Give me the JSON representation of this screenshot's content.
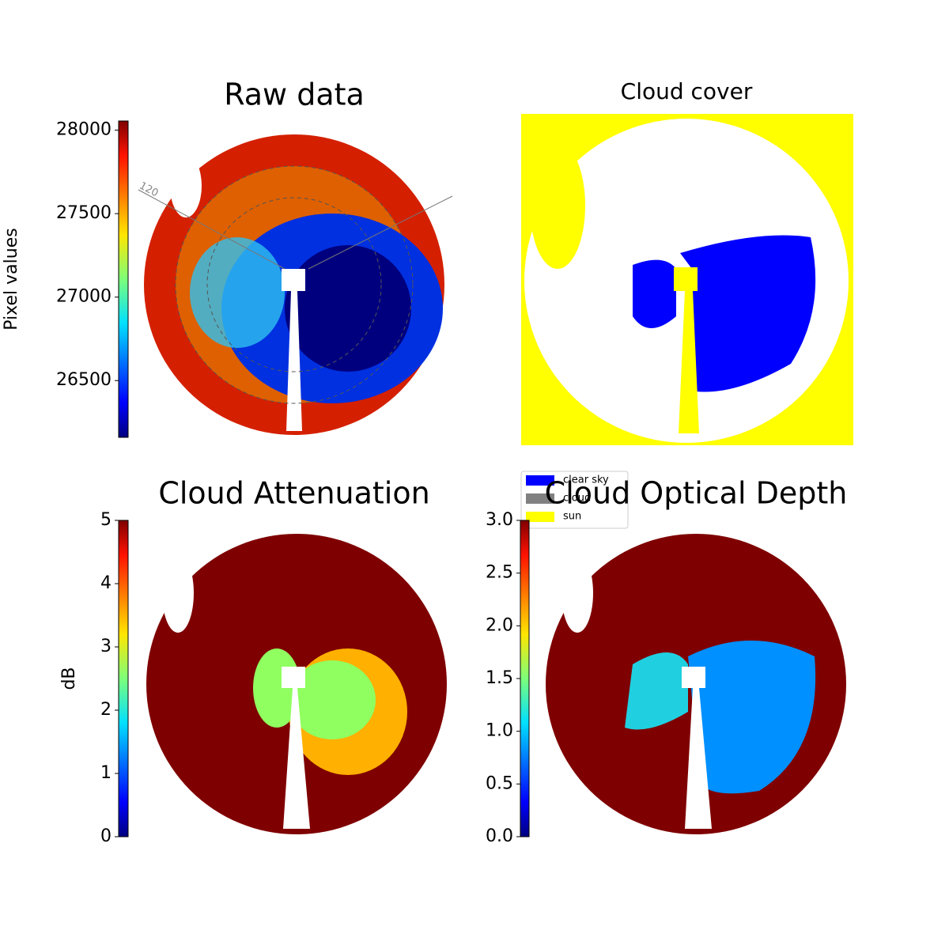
{
  "chart_data": [
    {
      "type": "image",
      "title": "Raw data",
      "polar_labels": [
        "120"
      ],
      "colorbar": {
        "label": "Pixel values",
        "lim": [
          26160,
          28055
        ],
        "ticks": [
          26500,
          27000,
          27500,
          28000
        ]
      }
    },
    {
      "type": "image",
      "title": "Cloud cover",
      "legend": [
        {
          "name": "clear sky",
          "color": "#0000ff"
        },
        {
          "name": "cloud",
          "color": "#808080"
        },
        {
          "name": "sun",
          "color": "#ffff00"
        }
      ]
    },
    {
      "type": "image",
      "title": "Cloud Attenuation",
      "colorbar": {
        "label": "dB",
        "lim": [
          0,
          5
        ],
        "ticks": [
          0,
          1,
          2,
          3,
          4,
          5
        ]
      }
    },
    {
      "type": "image",
      "title": "Cloud Optical Depth",
      "colorbar": {
        "lim": [
          0,
          3
        ],
        "ticks": [
          {
            "value": 0,
            "label": "0.0"
          },
          {
            "value": 0.5,
            "label": "0.5"
          },
          {
            "value": 1,
            "label": "1.0"
          },
          {
            "value": 1.5,
            "label": "1.5"
          },
          {
            "value": 2,
            "label": "2.0"
          },
          {
            "value": 2.5,
            "label": "2.5"
          },
          {
            "value": 3,
            "label": "3.0"
          }
        ]
      }
    }
  ]
}
